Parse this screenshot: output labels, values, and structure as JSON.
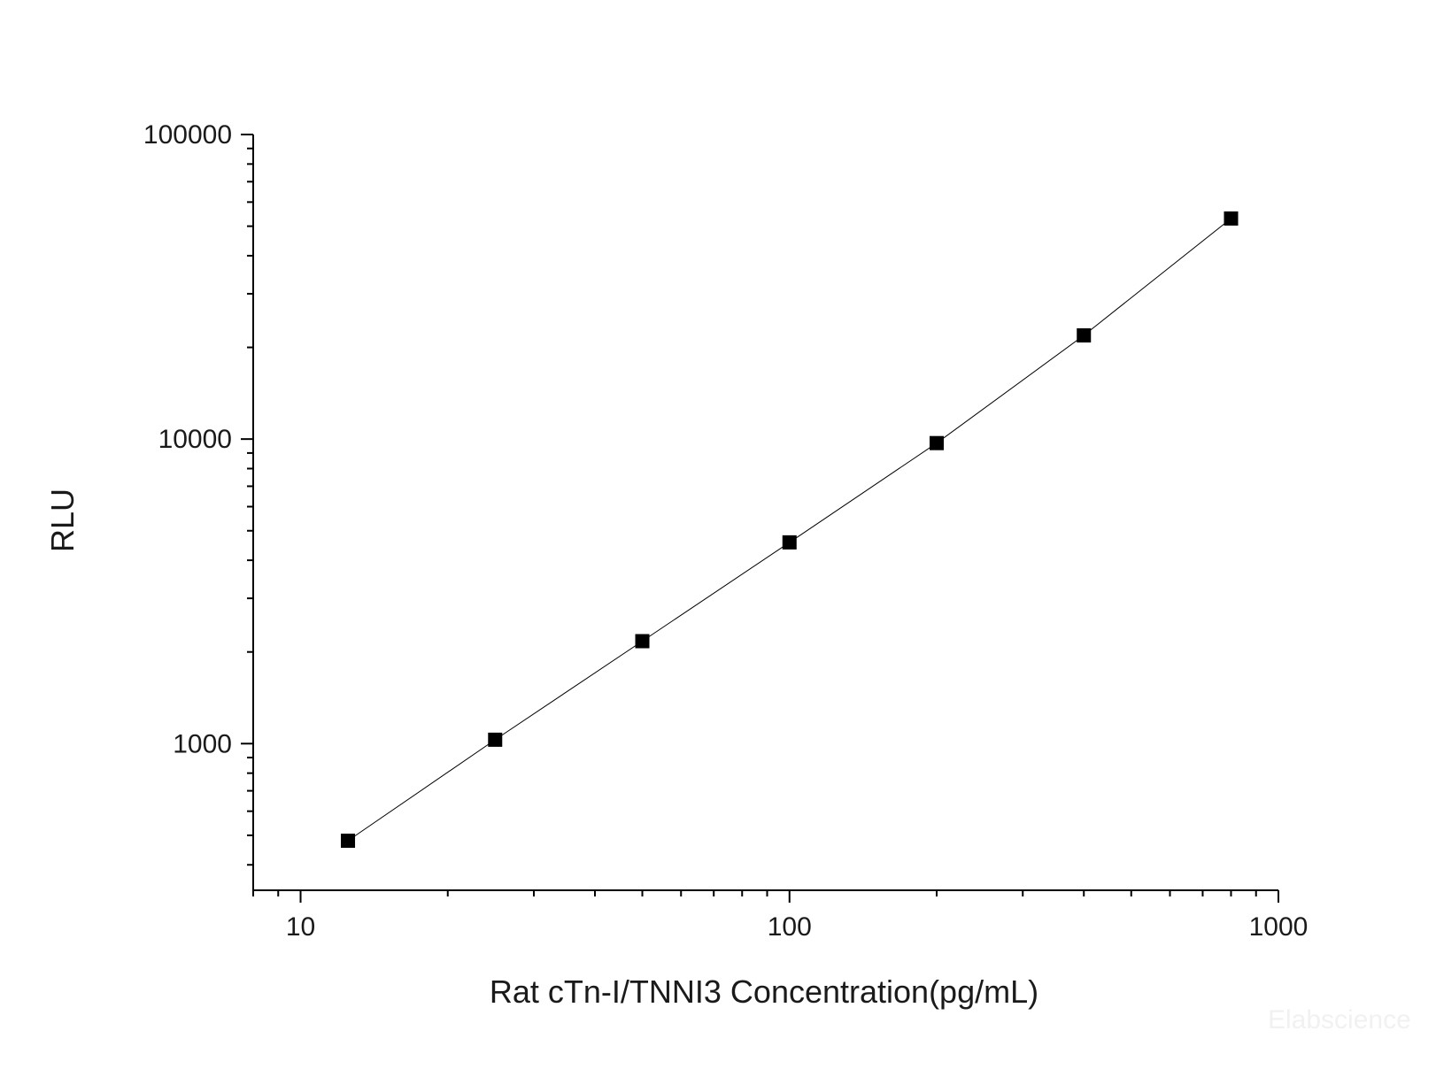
{
  "chart_data": {
    "type": "line",
    "title": "",
    "xlabel": "Rat cTn-I/TNNI3 Concentration(pg/mL)",
    "ylabel": "RLU",
    "x_scale": "log",
    "y_scale": "log",
    "xlim": [
      8,
      1000
    ],
    "ylim": [
      330,
      100000
    ],
    "x_ticks": [
      10,
      100,
      1000
    ],
    "x_tick_labels": [
      "10",
      "100",
      "1000"
    ],
    "y_ticks": [
      1000,
      10000,
      100000
    ],
    "y_tick_labels": [
      "1000",
      "10000",
      "100000"
    ],
    "grid": false,
    "series": [
      {
        "marker": "square",
        "color": "#000000",
        "x": [
          12.5,
          25,
          50,
          100,
          200,
          400,
          800
        ],
        "y": [
          480,
          1030,
          2170,
          4580,
          9700,
          21900,
          53000
        ]
      }
    ]
  },
  "watermark": "Elabscience"
}
